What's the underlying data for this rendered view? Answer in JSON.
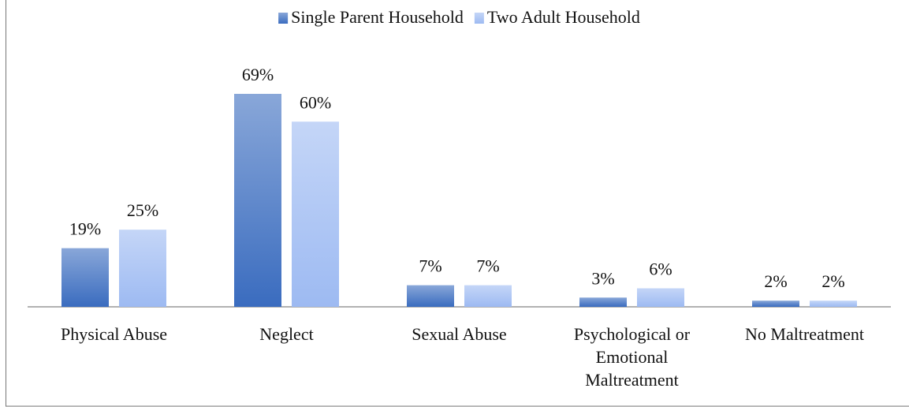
{
  "chart_data": {
    "type": "bar",
    "categories": [
      "Physical Abuse",
      "Neglect",
      "Sexual Abuse",
      "Psychological or Emotional Maltreatment",
      "No Maltreatment"
    ],
    "series": [
      {
        "name": "Single Parent Household",
        "color": "#3a6cbf",
        "values": [
          19,
          69,
          7,
          3,
          2
        ],
        "value_labels": [
          "19%",
          "69%",
          "7%",
          "3%",
          "2%"
        ]
      },
      {
        "name": "Two Adult Household",
        "color": "#9dbaf2",
        "values": [
          25,
          60,
          7,
          6,
          2
        ],
        "value_labels": [
          "25%",
          "60%",
          "7%",
          "6%",
          "2%"
        ]
      }
    ],
    "legend": "top"
  }
}
